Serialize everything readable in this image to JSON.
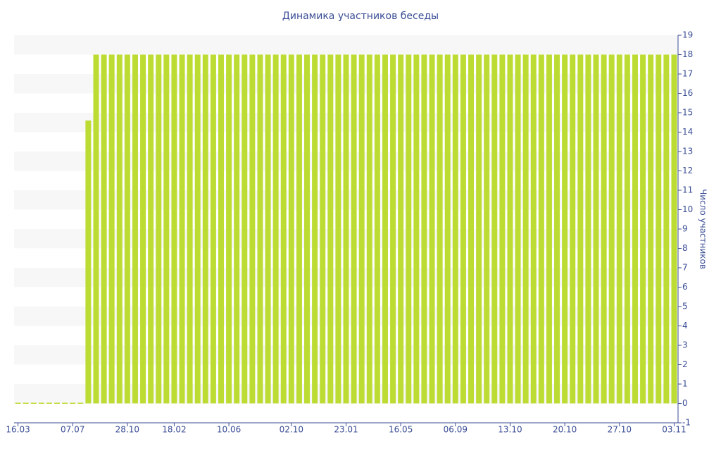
{
  "chart_data": {
    "type": "bar",
    "title": "Динамика участников беседы",
    "y_label": "Число участников",
    "categories": [
      "16.03",
      null,
      null,
      null,
      null,
      null,
      null,
      "07.07",
      null,
      null,
      null,
      null,
      null,
      null,
      "28.10",
      null,
      null,
      null,
      null,
      null,
      "18.02",
      null,
      null,
      null,
      null,
      null,
      null,
      "10.06",
      null,
      null,
      null,
      null,
      null,
      null,
      null,
      "02.10",
      null,
      null,
      null,
      null,
      null,
      null,
      "23.01",
      null,
      null,
      null,
      null,
      null,
      null,
      "16.05",
      null,
      null,
      null,
      null,
      null,
      null,
      "06.09",
      null,
      null,
      null,
      null,
      null,
      null,
      "13.10",
      null,
      null,
      null,
      null,
      null,
      null,
      "20.10",
      null,
      null,
      null,
      null,
      null,
      null,
      "27.10",
      null,
      null,
      null,
      null,
      null,
      null,
      "03.11"
    ],
    "values": [
      0,
      0,
      0,
      0,
      0,
      0,
      0,
      0,
      0,
      14.6,
      18,
      18,
      18,
      18,
      18,
      18,
      18,
      18,
      18,
      18,
      18,
      18,
      18,
      18,
      18,
      18,
      18,
      18,
      18,
      18,
      18,
      18,
      18,
      18,
      18,
      18,
      18,
      18,
      18,
      18,
      18,
      18,
      18,
      18,
      18,
      18,
      18,
      18,
      18,
      18,
      18,
      18,
      18,
      18,
      18,
      18,
      18,
      18,
      18,
      18,
      18,
      18,
      18,
      18,
      18,
      18,
      18,
      18,
      18,
      18,
      18,
      18,
      18,
      18,
      18,
      18,
      18,
      18,
      18,
      18,
      18,
      18,
      18,
      18,
      18
    ],
    "color": "#bcdc34",
    "ylim": [
      -1,
      19
    ],
    "yticks": [
      -1,
      0,
      1,
      2,
      3,
      4,
      5,
      6,
      7,
      8,
      9,
      10,
      11,
      12,
      13,
      14,
      15,
      16,
      17,
      18,
      19
    ],
    "grid": "bands",
    "y_axis_side": "right"
  }
}
